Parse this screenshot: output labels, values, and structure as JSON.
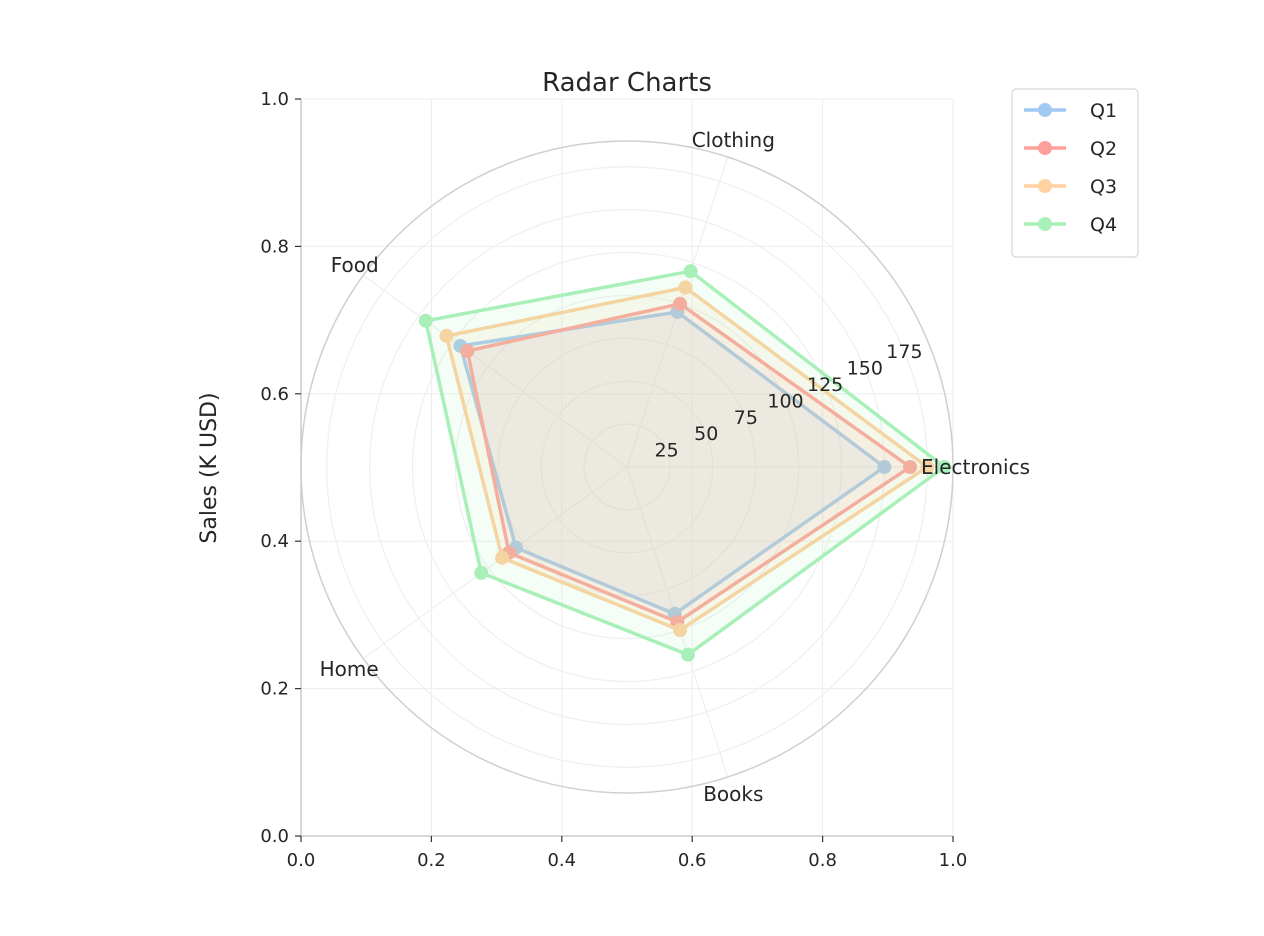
{
  "chart_data": {
    "type": "radar",
    "title": "Radar Charts",
    "ylabel": "Sales (K USD)",
    "categories": [
      "Electronics",
      "Clothing",
      "Food",
      "Home",
      "Books"
    ],
    "radial_ticks": [
      "25",
      "50",
      "75",
      "100",
      "125",
      "150",
      "175"
    ],
    "radial_range": [
      0,
      190
    ],
    "cartesian_ticks": [
      "0.0",
      "0.2",
      "0.4",
      "0.6",
      "0.8",
      "1.0"
    ],
    "grid": true,
    "legend_position": "outside-top-right",
    "series": [
      {
        "name": "Q1",
        "color": "#a1c9f4",
        "values": [
          150,
          95,
          120,
          80,
          90
        ]
      },
      {
        "name": "Q2",
        "color": "#ff9f9b",
        "values": [
          165,
          100,
          115,
          85,
          95
        ]
      },
      {
        "name": "Q3",
        "color": "#ffd2a0",
        "values": [
          175,
          110,
          130,
          90,
          100
        ]
      },
      {
        "name": "Q4",
        "color": "#a8f0b8",
        "values": [
          185,
          120,
          145,
          105,
          115
        ]
      }
    ]
  }
}
